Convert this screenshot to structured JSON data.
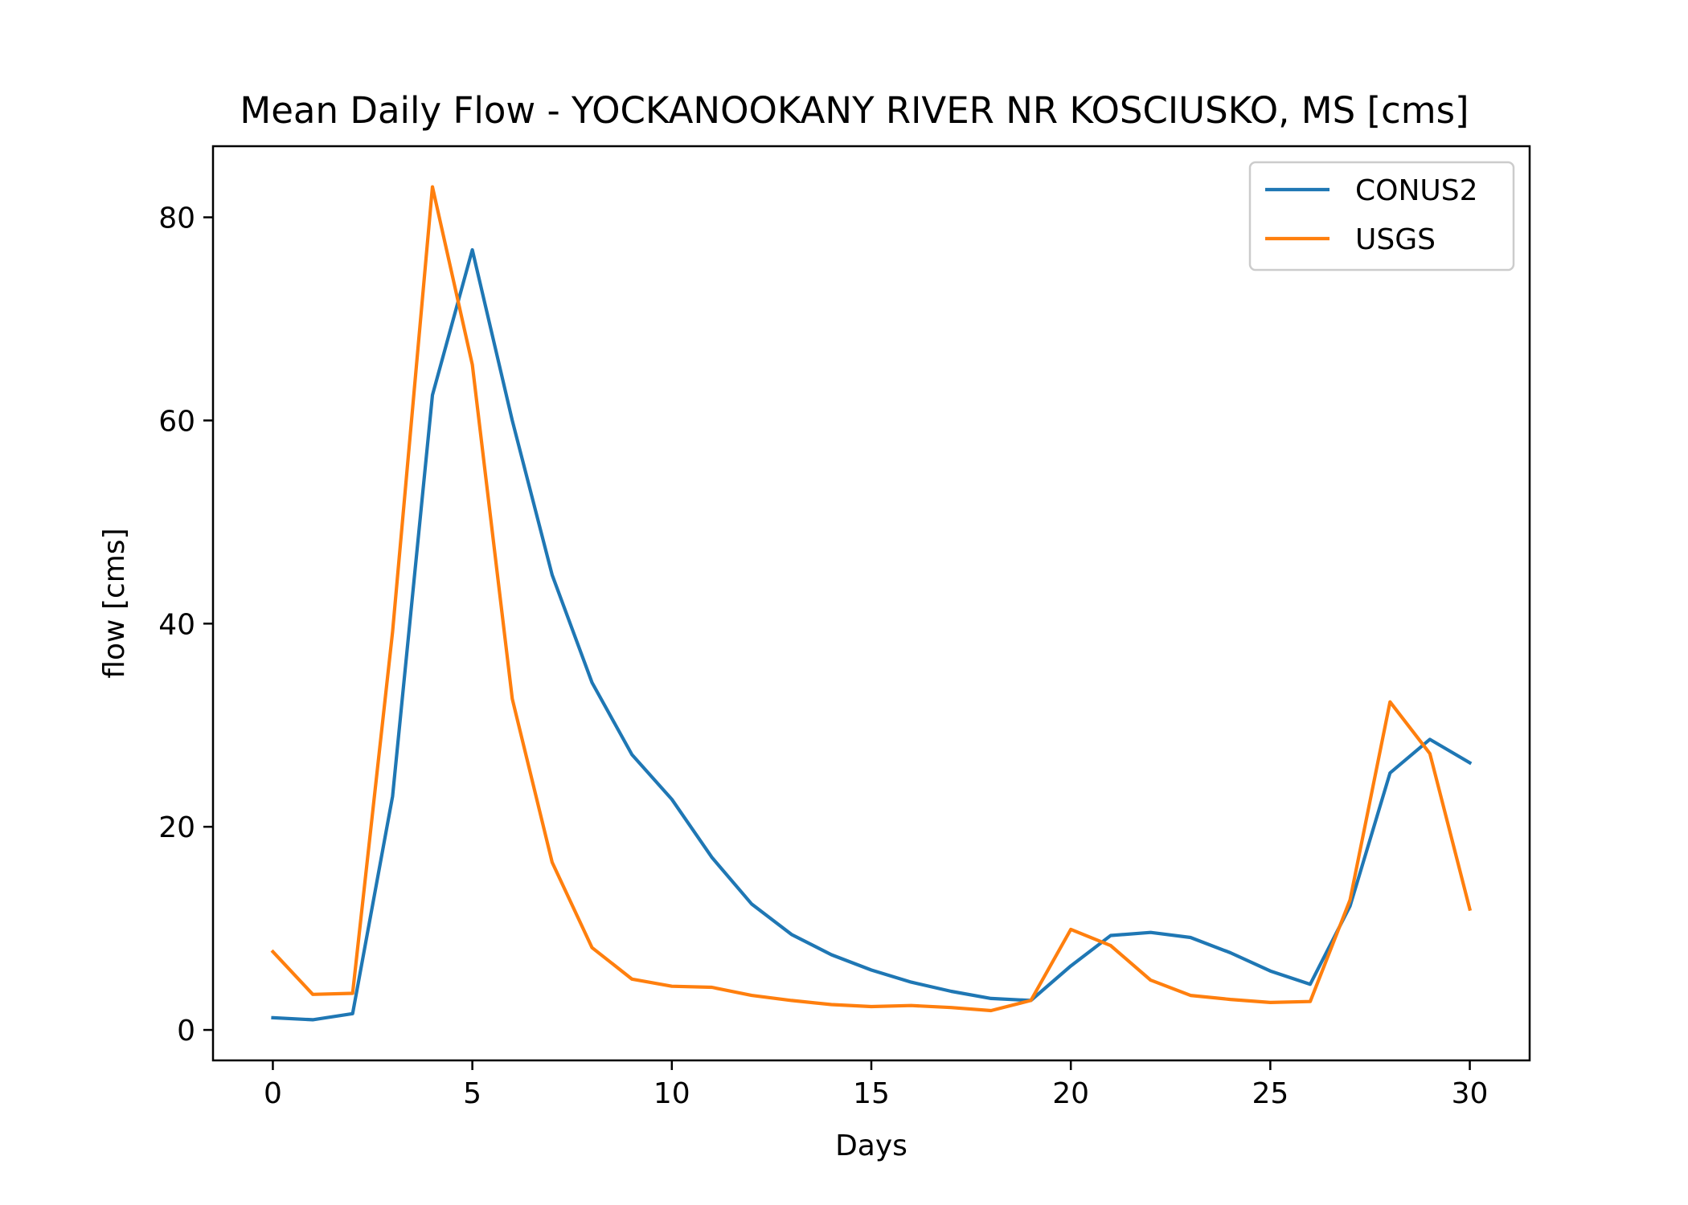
{
  "chart_data": {
    "type": "line",
    "title": "Mean Daily Flow - YOCKANOOKANY RIVER NR KOSCIUSKO, MS [cms]",
    "xlabel": "Days",
    "ylabel": "flow [cms]",
    "xlim": [
      -1.5,
      31.5
    ],
    "ylim": [
      -3,
      87
    ],
    "xticks": [
      0,
      5,
      10,
      15,
      20,
      25,
      30
    ],
    "yticks": [
      0,
      20,
      40,
      60,
      80
    ],
    "grid": false,
    "legend_position": "top-right",
    "x": [
      0,
      1,
      2,
      3,
      4,
      5,
      6,
      7,
      8,
      9,
      10,
      11,
      12,
      13,
      14,
      15,
      16,
      17,
      18,
      19,
      20,
      21,
      22,
      23,
      24,
      25,
      26,
      27,
      28,
      29,
      30
    ],
    "series": [
      {
        "name": "CONUS2",
        "color": "#1f77b4",
        "values": [
          1.2,
          1.0,
          1.6,
          23.0,
          62.5,
          76.8,
          60.0,
          44.8,
          34.2,
          27.1,
          22.7,
          17.0,
          12.4,
          9.4,
          7.4,
          5.9,
          4.7,
          3.8,
          3.1,
          2.9,
          6.3,
          9.3,
          9.6,
          9.1,
          7.6,
          5.8,
          4.5,
          12.2,
          25.3,
          28.6,
          26.3
        ]
      },
      {
        "name": "USGS",
        "color": "#ff7f0e",
        "values": [
          7.7,
          3.5,
          3.6,
          39.2,
          83.0,
          65.5,
          32.6,
          16.5,
          8.1,
          5.0,
          4.3,
          4.2,
          3.4,
          2.9,
          2.5,
          2.3,
          2.4,
          2.2,
          1.9,
          2.9,
          9.9,
          8.3,
          4.9,
          3.4,
          3.0,
          2.7,
          2.8,
          12.8,
          32.3,
          27.2,
          11.9
        ]
      }
    ]
  }
}
